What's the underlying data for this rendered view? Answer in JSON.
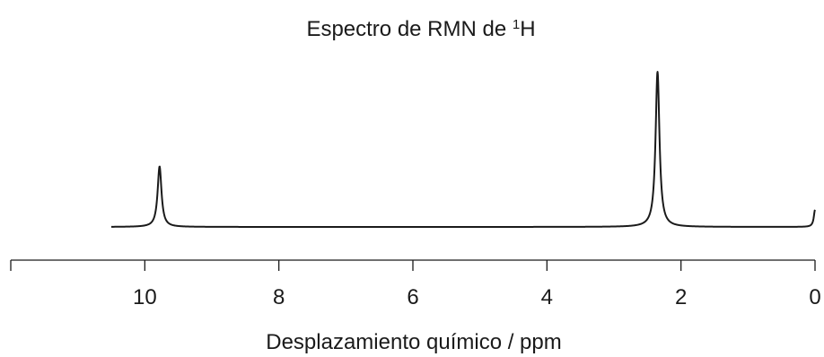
{
  "chart_data": {
    "type": "line",
    "title": "Espectro de RMN de ",
    "title_superscript": "1",
    "title_suffix": "H",
    "xlabel": "Desplazamiento químico / ppm",
    "ylabel": "",
    "x_reversed": true,
    "xlim": [
      12,
      0
    ],
    "x_ticks": [
      12,
      10,
      8,
      6,
      4,
      2,
      0
    ],
    "x_tick_labels": [
      "",
      "10",
      "8",
      "6",
      "4",
      "2",
      "0"
    ],
    "spectrum_range_ppm": [
      10.5,
      0
    ],
    "series": [
      {
        "line_color": "#1a1a1a",
        "peaks": [
          {
            "shift_ppm": 9.78,
            "relative_intensity": 0.39,
            "width_ppm": 0.035
          },
          {
            "shift_ppm": 2.35,
            "relative_intensity": 1.0,
            "width_ppm": 0.035
          },
          {
            "shift_ppm": 0.0,
            "relative_intensity": 0.11,
            "width_ppm": 0.022
          }
        ]
      }
    ],
    "grid": false,
    "legend": "none"
  }
}
